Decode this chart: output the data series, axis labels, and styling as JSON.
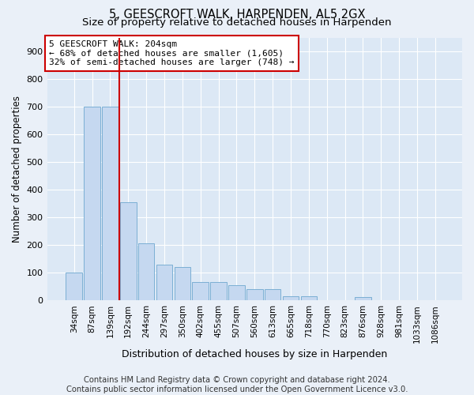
{
  "title": "5, GEESCROFT WALK, HARPENDEN, AL5 2GX",
  "subtitle": "Size of property relative to detached houses in Harpenden",
  "xlabel": "Distribution of detached houses by size in Harpenden",
  "ylabel": "Number of detached properties",
  "categories": [
    "34sqm",
    "87sqm",
    "139sqm",
    "192sqm",
    "244sqm",
    "297sqm",
    "350sqm",
    "402sqm",
    "455sqm",
    "507sqm",
    "560sqm",
    "613sqm",
    "665sqm",
    "718sqm",
    "770sqm",
    "823sqm",
    "876sqm",
    "928sqm",
    "981sqm",
    "1033sqm",
    "1086sqm"
  ],
  "values": [
    100,
    700,
    700,
    355,
    205,
    130,
    120,
    65,
    65,
    55,
    40,
    40,
    15,
    15,
    0,
    0,
    12,
    0,
    0,
    0,
    0
  ],
  "bar_color": "#c5d8f0",
  "bar_edge_color": "#7bafd4",
  "vline_x_index": 2.5,
  "vline_color": "#cc0000",
  "annotation_text": "5 GEESCROFT WALK: 204sqm\n← 68% of detached houses are smaller (1,605)\n32% of semi-detached houses are larger (748) →",
  "annotation_box_color": "#ffffff",
  "annotation_box_edge_color": "#cc0000",
  "ylim": [
    0,
    950
  ],
  "yticks": [
    0,
    100,
    200,
    300,
    400,
    500,
    600,
    700,
    800,
    900
  ],
  "footer_text": "Contains HM Land Registry data © Crown copyright and database right 2024.\nContains public sector information licensed under the Open Government Licence v3.0.",
  "bg_color": "#eaf0f8",
  "plot_bg_color": "#dce8f5",
  "grid_color": "#ffffff",
  "title_fontsize": 10.5,
  "subtitle_fontsize": 9.5,
  "footer_fontsize": 7.2
}
